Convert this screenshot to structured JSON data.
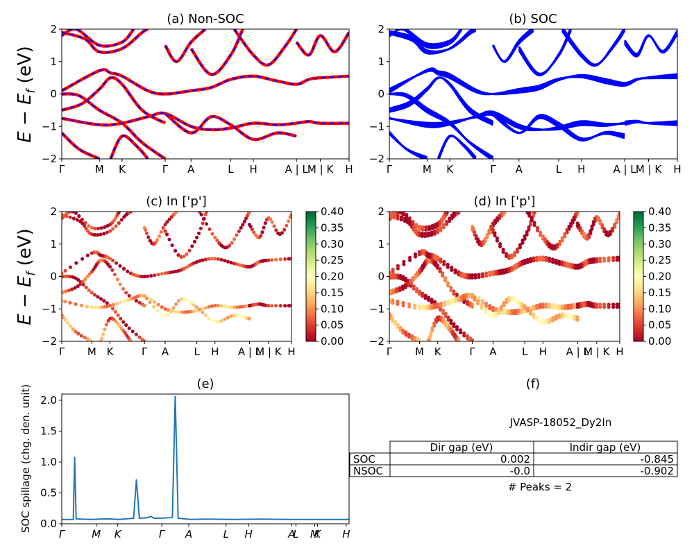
{
  "figure": {
    "title_a": "(a) Non-SOC",
    "title_b": "(b) SOC",
    "title_c": "(c)  In ['p']",
    "title_d": "(d) In ['p']",
    "title_e": "(e)",
    "title_f": "(f)",
    "band_ylabel": "E − E_f (eV)",
    "band_ylabel_main": "E − E",
    "band_ylabel_sub": "f",
    "band_ylabel_unit": " (eV)",
    "spillage_ylabel": "SOC spillage (chg. den. unit)"
  },
  "colors": {
    "nonsoc_line": "#ff0000",
    "nonsoc_dash": "#0000ff",
    "soc_line": "#0000ff",
    "spillage_line": "#1f77b4",
    "colormap": "RdYlGn"
  },
  "chart_data": [
    {
      "id": "a",
      "type": "line",
      "title": "(a) Non-SOC",
      "ylabel": "E − E_f (eV)",
      "ylim": [
        -2,
        2
      ],
      "yticks": [
        "2",
        "1",
        "0",
        "−1",
        "−2"
      ],
      "kpath_labels": [
        "Γ",
        "M",
        "K",
        "Γ",
        "A",
        "L",
        "H",
        "A | L",
        "M | K",
        "H"
      ],
      "kpath_positions": [
        0,
        0.131,
        0.21,
        0.36,
        0.45,
        0.588,
        0.667,
        0.817,
        0.9,
        1.0
      ],
      "series": [
        {
          "points": [
            [
              0,
              0
            ],
            [
              0.06,
              -0.05
            ],
            [
              0.131,
              -0.5
            ],
            [
              0.21,
              -0.9
            ],
            [
              0.28,
              -1.5
            ],
            [
              0.36,
              -2
            ]
          ]
        },
        {
          "points": [
            [
              0,
              -0.5
            ],
            [
              0.07,
              -0.3
            ],
            [
              0.131,
              0.15
            ],
            [
              0.17,
              0.5
            ],
            [
              0.21,
              0.3
            ],
            [
              0.28,
              -0.5
            ],
            [
              0.36,
              -0.9
            ]
          ]
        },
        {
          "points": [
            [
              0,
              0.1
            ],
            [
              0.131,
              0.72
            ],
            [
              0.17,
              0.65
            ],
            [
              0.21,
              0.55
            ],
            [
              0.3,
              0.1
            ],
            [
              0.36,
              0.0
            ],
            [
              0.45,
              0.1
            ],
            [
              0.52,
              0.2
            ],
            [
              0.588,
              0.45
            ],
            [
              0.667,
              0.55
            ],
            [
              0.75,
              0.4
            ],
            [
              0.817,
              0.3
            ],
            [
              0.86,
              0.45
            ],
            [
              0.9,
              0.5
            ],
            [
              1.0,
              0.55
            ]
          ]
        },
        {
          "points": [
            [
              0,
              -0.75
            ],
            [
              0.131,
              -0.95
            ],
            [
              0.21,
              -0.9
            ],
            [
              0.3,
              -0.7
            ],
            [
              0.36,
              -0.6
            ],
            [
              0.45,
              -1.0
            ],
            [
              0.52,
              -1.1
            ],
            [
              0.588,
              -1.05
            ],
            [
              0.667,
              -0.9
            ],
            [
              0.75,
              -0.95
            ],
            [
              0.817,
              -0.9
            ]
          ]
        },
        {
          "points": [
            [
              0.36,
              -0.6
            ],
            [
              0.45,
              -1.2
            ],
            [
              0.52,
              -0.7
            ],
            [
              0.588,
              -0.95
            ],
            [
              0.667,
              -1.4
            ],
            [
              0.75,
              -1.2
            ],
            [
              0.817,
              -1.3
            ]
          ]
        },
        {
          "points": [
            [
              0.817,
              -0.9
            ],
            [
              0.86,
              -0.85
            ],
            [
              0.9,
              -0.9
            ],
            [
              1.0,
              -0.9
            ]
          ]
        },
        {
          "points": [
            [
              0,
              1.8
            ],
            [
              0.05,
              2.0
            ],
            [
              0.131,
              1.5
            ],
            [
              0.21,
              1.6
            ],
            [
              0.25,
              2.0
            ]
          ]
        },
        {
          "points": [
            [
              0,
              1.9
            ],
            [
              0.08,
              1.7
            ],
            [
              0.131,
              1.3
            ],
            [
              0.21,
              1.4
            ],
            [
              0.28,
              1.9
            ],
            [
              0.3,
              2.0
            ]
          ]
        },
        {
          "points": [
            [
              0.36,
              1.5
            ],
            [
              0.4,
              1.0
            ],
            [
              0.45,
              1.6
            ],
            [
              0.5,
              2.0
            ]
          ]
        },
        {
          "points": [
            [
              0.45,
              1.4
            ],
            [
              0.52,
              0.6
            ],
            [
              0.588,
              1.2
            ],
            [
              0.63,
              2.0
            ]
          ]
        },
        {
          "points": [
            [
              0.6,
              2.0
            ],
            [
              0.667,
              1.2
            ],
            [
              0.72,
              0.9
            ],
            [
              0.78,
              1.5
            ],
            [
              0.817,
              2.0
            ]
          ]
        },
        {
          "points": [
            [
              0.817,
              1.6
            ],
            [
              0.86,
              1.2
            ],
            [
              0.9,
              1.8
            ],
            [
              0.95,
              1.3
            ],
            [
              1.0,
              1.9
            ]
          ]
        },
        {
          "points": [
            [
              0,
              -1.2
            ],
            [
              0.06,
              -1.7
            ],
            [
              0.131,
              -2.0
            ]
          ]
        },
        {
          "points": [
            [
              0.17,
              -2.0
            ],
            [
              0.21,
              -1.3
            ],
            [
              0.26,
              -1.6
            ],
            [
              0.3,
              -2.0
            ]
          ]
        }
      ]
    },
    {
      "id": "b",
      "type": "line",
      "title": "(b) SOC",
      "ylim": [
        -2,
        2
      ],
      "yticks": [
        "2",
        "1",
        "0",
        "−1",
        "−2"
      ],
      "kpath_labels": [
        "Γ",
        "M",
        "K",
        "Γ",
        "A",
        "L",
        "H",
        "A | L",
        "M | K",
        "H"
      ],
      "kpath_positions": [
        0,
        0.131,
        0.21,
        0.36,
        0.45,
        0.588,
        0.667,
        0.817,
        0.9,
        1.0
      ],
      "series": [
        {
          "points": [
            [
              0,
              0
            ],
            [
              0.06,
              -0.05
            ],
            [
              0.131,
              -0.5
            ],
            [
              0.21,
              -0.9
            ],
            [
              0.28,
              -1.5
            ],
            [
              0.36,
              -2
            ]
          ]
        },
        {
          "points": [
            [
              0,
              -0.5
            ],
            [
              0.07,
              -0.3
            ],
            [
              0.131,
              0.15
            ],
            [
              0.17,
              0.5
            ],
            [
              0.21,
              0.3
            ],
            [
              0.28,
              -0.5
            ],
            [
              0.36,
              -0.9
            ]
          ]
        },
        {
          "points": [
            [
              0,
              0.1
            ],
            [
              0.131,
              0.72
            ],
            [
              0.17,
              0.65
            ],
            [
              0.21,
              0.55
            ],
            [
              0.3,
              0.1
            ],
            [
              0.36,
              0.0
            ],
            [
              0.45,
              0.1
            ],
            [
              0.52,
              0.2
            ],
            [
              0.588,
              0.45
            ],
            [
              0.667,
              0.55
            ],
            [
              0.75,
              0.4
            ],
            [
              0.817,
              0.3
            ],
            [
              0.86,
              0.45
            ],
            [
              0.9,
              0.5
            ],
            [
              1.0,
              0.55
            ]
          ]
        },
        {
          "points": [
            [
              0,
              -0.75
            ],
            [
              0.131,
              -0.95
            ],
            [
              0.21,
              -0.9
            ],
            [
              0.3,
              -0.7
            ],
            [
              0.36,
              -0.6
            ],
            [
              0.45,
              -1.0
            ],
            [
              0.52,
              -1.1
            ],
            [
              0.588,
              -1.05
            ],
            [
              0.667,
              -0.9
            ],
            [
              0.75,
              -0.95
            ],
            [
              0.817,
              -0.9
            ]
          ]
        },
        {
          "points": [
            [
              0.36,
              -0.6
            ],
            [
              0.45,
              -1.2
            ],
            [
              0.52,
              -0.7
            ],
            [
              0.588,
              -0.95
            ],
            [
              0.667,
              -1.4
            ],
            [
              0.75,
              -1.2
            ],
            [
              0.817,
              -1.3
            ]
          ]
        },
        {
          "points": [
            [
              0.817,
              -0.9
            ],
            [
              0.86,
              -0.85
            ],
            [
              0.9,
              -0.9
            ],
            [
              1.0,
              -0.9
            ]
          ]
        },
        {
          "points": [
            [
              0,
              1.8
            ],
            [
              0.05,
              2.0
            ],
            [
              0.131,
              1.5
            ],
            [
              0.21,
              1.6
            ],
            [
              0.25,
              2.0
            ]
          ]
        },
        {
          "points": [
            [
              0,
              1.9
            ],
            [
              0.08,
              1.7
            ],
            [
              0.131,
              1.3
            ],
            [
              0.21,
              1.4
            ],
            [
              0.28,
              1.9
            ],
            [
              0.3,
              2.0
            ]
          ]
        },
        {
          "points": [
            [
              0.36,
              1.5
            ],
            [
              0.4,
              1.0
            ],
            [
              0.45,
              1.6
            ],
            [
              0.5,
              2.0
            ]
          ]
        },
        {
          "points": [
            [
              0.45,
              1.4
            ],
            [
              0.52,
              0.6
            ],
            [
              0.588,
              1.2
            ],
            [
              0.63,
              2.0
            ]
          ]
        },
        {
          "points": [
            [
              0.6,
              2.0
            ],
            [
              0.667,
              1.2
            ],
            [
              0.72,
              0.9
            ],
            [
              0.78,
              1.5
            ],
            [
              0.817,
              2.0
            ]
          ]
        },
        {
          "points": [
            [
              0.817,
              1.6
            ],
            [
              0.86,
              1.2
            ],
            [
              0.9,
              1.8
            ],
            [
              0.95,
              1.3
            ],
            [
              1.0,
              1.9
            ]
          ]
        },
        {
          "points": [
            [
              0,
              -1.2
            ],
            [
              0.06,
              -1.7
            ],
            [
              0.131,
              -2.0
            ]
          ]
        },
        {
          "points": [
            [
              0.17,
              -2.0
            ],
            [
              0.21,
              -1.3
            ],
            [
              0.26,
              -1.6
            ],
            [
              0.3,
              -2.0
            ]
          ]
        }
      ]
    },
    {
      "id": "c",
      "type": "scatter",
      "title": "(c)  In ['p']",
      "ylabel": "E − E_f (eV)",
      "ylim": [
        -2,
        2
      ],
      "yticks": [
        "2",
        "1",
        "0",
        "−1",
        "−2"
      ],
      "kpath_labels": [
        "Γ",
        "M",
        "K",
        "Γ",
        "A",
        "L",
        "H",
        "A | L",
        "M | K",
        "H"
      ],
      "kpath_positions": [
        0,
        0.131,
        0.21,
        0.36,
        0.45,
        0.588,
        0.667,
        0.817,
        0.9,
        1.0
      ],
      "colorbar": {
        "min": 0.0,
        "max": 0.4,
        "ticks": [
          "0.00",
          "0.05",
          "0.10",
          "0.15",
          "0.20",
          "0.25",
          "0.30",
          "0.35",
          "0.40"
        ]
      },
      "band_weights": [
        0.02,
        0.05,
        0.03,
        0.12,
        0.15,
        0.02,
        0.03,
        0.02,
        0.05,
        0.02,
        0.03,
        0.04,
        0.1,
        0.08
      ]
    },
    {
      "id": "d",
      "type": "scatter",
      "title": "(d) In ['p']",
      "ylim": [
        -2,
        2
      ],
      "yticks": [
        "2",
        "1",
        "0",
        "−1",
        "−2"
      ],
      "kpath_labels": [
        "Γ",
        "M",
        "K",
        "Γ",
        "A",
        "L",
        "H",
        "A | L",
        "M | K",
        "H"
      ],
      "kpath_positions": [
        0,
        0.131,
        0.21,
        0.36,
        0.45,
        0.588,
        0.667,
        0.817,
        0.9,
        1.0
      ],
      "colorbar": {
        "min": 0.0,
        "max": 0.4,
        "ticks": [
          "0.00",
          "0.05",
          "0.10",
          "0.15",
          "0.20",
          "0.25",
          "0.30",
          "0.35",
          "0.40"
        ]
      },
      "band_weights": [
        0.02,
        0.05,
        0.03,
        0.12,
        0.15,
        0.02,
        0.03,
        0.02,
        0.05,
        0.02,
        0.03,
        0.04,
        0.1,
        0.08
      ]
    },
    {
      "id": "e",
      "type": "line",
      "title": "(e)",
      "ylabel": "SOC spillage (chg. den. unit)",
      "ylim": [
        0,
        2.1
      ],
      "yticks": [
        "0.0",
        "0.5",
        "1.0",
        "1.5",
        "2.0"
      ],
      "ytick_values": [
        0,
        0.5,
        1.0,
        1.5,
        2.0
      ],
      "kpath_labels": [
        "Γ",
        "M",
        "K",
        "Γ",
        "A",
        "L",
        "H",
        "A",
        "L",
        "M",
        "K",
        "H"
      ],
      "kpath_positions": [
        0,
        0.12,
        0.195,
        0.348,
        0.442,
        0.572,
        0.65,
        0.8,
        0.815,
        0.88,
        0.89,
        0.99
      ],
      "series": [
        {
          "points": [
            [
              0,
              0.07
            ],
            [
              0.04,
              0.07
            ],
            [
              0.045,
              1.08
            ],
            [
              0.05,
              0.08
            ],
            [
              0.1,
              0.07
            ],
            [
              0.16,
              0.08
            ],
            [
              0.2,
              0.07
            ],
            [
              0.25,
              0.09
            ],
            [
              0.26,
              0.72
            ],
            [
              0.27,
              0.09
            ],
            [
              0.3,
              0.1
            ],
            [
              0.31,
              0.12
            ],
            [
              0.32,
              0.09
            ],
            [
              0.34,
              0.09
            ],
            [
              0.385,
              0.1
            ],
            [
              0.395,
              2.07
            ],
            [
              0.405,
              0.09
            ],
            [
              0.45,
              0.07
            ],
            [
              0.5,
              0.075
            ],
            [
              0.6,
              0.07
            ],
            [
              0.7,
              0.075
            ],
            [
              0.8,
              0.07
            ],
            [
              0.9,
              0.07
            ],
            [
              1.0,
              0.07
            ]
          ]
        }
      ]
    },
    {
      "id": "f",
      "type": "table",
      "title": "(f)",
      "subtitle": "JVASP-18052_Dy2In",
      "columns": [
        "",
        "Dir gap (eV)",
        "Indir gap (eV)"
      ],
      "rows": [
        {
          "label": "SOC",
          "dir": "0.002",
          "indir": "-0.845"
        },
        {
          "label": "NSOC",
          "dir": "-0.0",
          "indir": "-0.902"
        }
      ],
      "footer": "# Peaks = 2"
    }
  ]
}
